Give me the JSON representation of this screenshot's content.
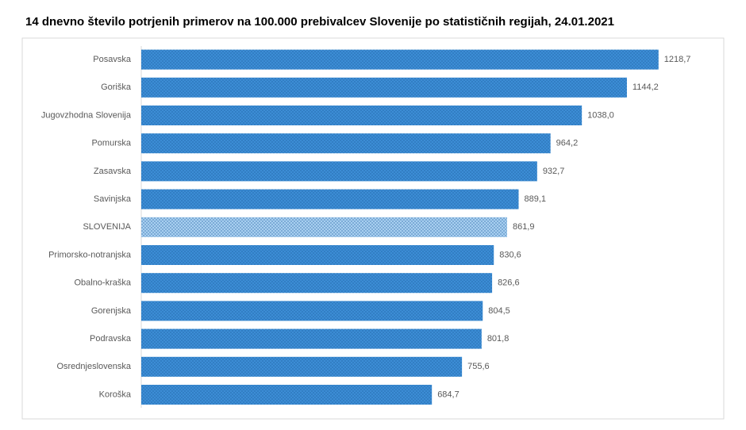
{
  "chart_data": {
    "type": "bar",
    "orientation": "horizontal",
    "title": "14 dnevno število potrjenih primerov na 100.000  prebivalcev Slovenije po statističnih regijah, 24.01.2021",
    "categories": [
      "Posavska",
      "Goriška",
      "Jugovzhodna Slovenija",
      "Pomurska",
      "Zasavska",
      "Savinjska",
      "SLOVENIJA",
      "Primorsko-notranjska",
      "Obalno-kraška",
      "Gorenjska",
      "Podravska",
      "Osrednjeslovenska",
      "Koroška"
    ],
    "values": [
      1218.7,
      1144.2,
      1038.0,
      964.2,
      932.7,
      889.1,
      861.9,
      830.6,
      826.6,
      804.5,
      801.8,
      755.6,
      684.7
    ],
    "value_labels": [
      "1218,7",
      "1144,2",
      "1038,0",
      "964,2",
      "932,7",
      "889,1",
      "861,9",
      "830,6",
      "826,6",
      "804,5",
      "801,8",
      "755,6",
      "684,7"
    ],
    "colors": [
      "#3c8dd5",
      "#3c8dd5",
      "#3c8dd5",
      "#3c8dd5",
      "#3c8dd5",
      "#3c8dd5",
      "#a8cff0",
      "#3c8dd5",
      "#3c8dd5",
      "#3c8dd5",
      "#3c8dd5",
      "#3c8dd5",
      "#3c8dd5"
    ],
    "xlim": [
      0,
      1350
    ]
  }
}
